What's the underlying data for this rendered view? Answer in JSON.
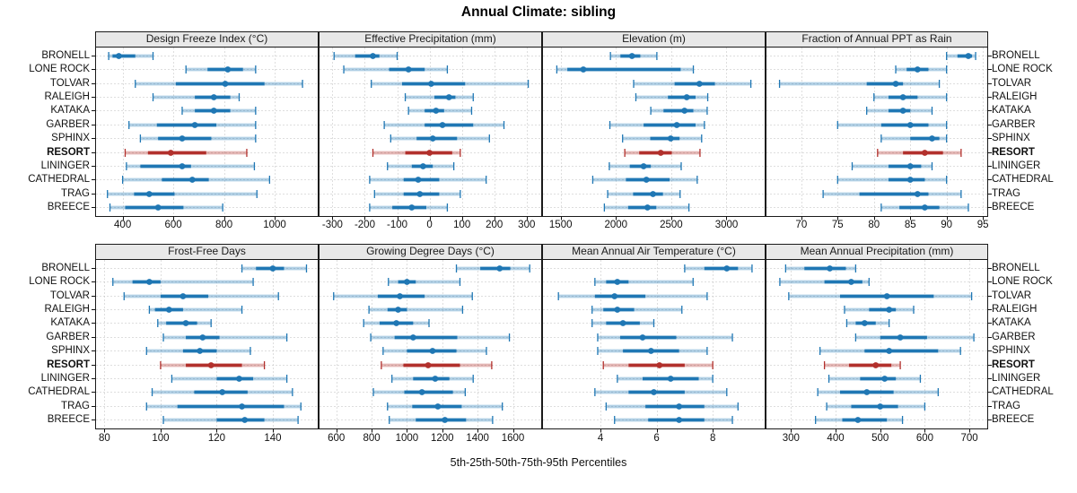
{
  "title": "Annual Climate: sibling",
  "caption": "5th-25th-50th-75th-95th Percentiles",
  "percentile_labels": [
    "5th",
    "25th",
    "50th",
    "75th",
    "95th"
  ],
  "sites": [
    "BRONELL",
    "LONE ROCK",
    "TOLVAR",
    "RALEIGH",
    "KATAKA",
    "GARBER",
    "SPHINX",
    "RESORT",
    "LININGER",
    "CATHEDRAL",
    "TRAG",
    "BREECE"
  ],
  "highlight_site": "RESORT",
  "colors": {
    "series": "#1f77b4",
    "highlight": "#b2302c",
    "strip_bg": "#e8e8e8",
    "grid": "#bdbdbd",
    "border": "#1a1a1a",
    "text": "#000000"
  },
  "chart_data": {
    "type": "percentile-dotplot-grid",
    "layout": "2 rows x 4 cols, shared site axis, thin band = 5th-95th, thick band = 25th-75th, dot = 50th",
    "panels": [
      {
        "title": "Design Freeze Index (°C)",
        "slug": "design-freeze-index",
        "row": 0,
        "col": 0,
        "xticks": [
          400,
          600,
          800,
          1000
        ],
        "xlim": [
          295,
          1170
        ],
        "values": [
          [
            345,
            360,
            385,
            450,
            520
          ],
          [
            650,
            735,
            815,
            875,
            925
          ],
          [
            450,
            610,
            805,
            960,
            1110
          ],
          [
            520,
            685,
            760,
            825,
            860
          ],
          [
            635,
            685,
            760,
            825,
            925
          ],
          [
            425,
            535,
            685,
            770,
            925
          ],
          [
            470,
            540,
            635,
            750,
            925
          ],
          [
            410,
            500,
            590,
            730,
            890
          ],
          [
            415,
            470,
            635,
            670,
            920
          ],
          [
            400,
            555,
            675,
            740,
            980
          ],
          [
            340,
            445,
            505,
            605,
            930
          ],
          [
            350,
            410,
            540,
            640,
            795
          ]
        ]
      },
      {
        "title": "Effective Precipitation (mm)",
        "slug": "effective-precipitation",
        "row": 0,
        "col": 1,
        "xticks": [
          -300,
          -200,
          -100,
          0,
          100,
          200,
          300
        ],
        "xlim": [
          -340,
          345
        ],
        "values": [
          [
            -295,
            -230,
            -175,
            -155,
            -100
          ],
          [
            -265,
            -125,
            -65,
            -15,
            55
          ],
          [
            -180,
            -85,
            5,
            110,
            305
          ],
          [
            -75,
            15,
            60,
            80,
            135
          ],
          [
            -65,
            -15,
            20,
            45,
            130
          ],
          [
            -140,
            -15,
            40,
            135,
            230
          ],
          [
            -120,
            -40,
            10,
            85,
            185
          ],
          [
            -175,
            -75,
            0,
            70,
            95
          ],
          [
            -130,
            -55,
            -20,
            10,
            75
          ],
          [
            -185,
            -80,
            -35,
            30,
            175
          ],
          [
            -170,
            -80,
            -30,
            30,
            95
          ],
          [
            -185,
            -115,
            -55,
            -10,
            55
          ]
        ]
      },
      {
        "title": "Elevation (m)",
        "slug": "elevation",
        "row": 0,
        "col": 2,
        "xticks": [
          1500,
          2000,
          2500,
          3000
        ],
        "xlim": [
          1340,
          3345
        ],
        "values": [
          [
            1950,
            2040,
            2145,
            2220,
            2370
          ],
          [
            1465,
            1560,
            1705,
            2585,
            2700
          ],
          [
            2160,
            2530,
            2755,
            2895,
            3220
          ],
          [
            2180,
            2470,
            2640,
            2720,
            2830
          ],
          [
            2315,
            2430,
            2620,
            2700,
            2825
          ],
          [
            1945,
            2250,
            2550,
            2720,
            2800
          ],
          [
            2060,
            2310,
            2495,
            2575,
            2775
          ],
          [
            2080,
            2210,
            2405,
            2505,
            2760
          ],
          [
            1940,
            2125,
            2250,
            2315,
            2590
          ],
          [
            1790,
            2090,
            2275,
            2485,
            2735
          ],
          [
            1925,
            2155,
            2335,
            2425,
            2580
          ],
          [
            1895,
            2110,
            2285,
            2365,
            2660
          ]
        ]
      },
      {
        "title": "Fraction of Annual PPT as Rain",
        "slug": "fraction-of-annual-ppt-as-rain",
        "row": 0,
        "col": 3,
        "xticks": [
          70,
          75,
          80,
          85,
          90,
          95
        ],
        "xlim": [
          65.2,
          95.6
        ],
        "values": [
          [
            90,
            91.5,
            93,
            93.5,
            94
          ],
          [
            83,
            84.5,
            86,
            87.5,
            90
          ],
          [
            67,
            79,
            83,
            84,
            89
          ],
          [
            80,
            82,
            84,
            86,
            90
          ],
          [
            79,
            82,
            84,
            85,
            88
          ],
          [
            75,
            81,
            85,
            87.5,
            90
          ],
          [
            81,
            85,
            88,
            89,
            90
          ],
          [
            80.5,
            84,
            87,
            89.5,
            92
          ],
          [
            77,
            82,
            85,
            86.5,
            88
          ],
          [
            75,
            82,
            85,
            87,
            90
          ],
          [
            73,
            78,
            86,
            87.5,
            92
          ],
          [
            81,
            83.5,
            87,
            89,
            93
          ]
        ]
      },
      {
        "title": "Frost-Free Days",
        "slug": "frost-free-days",
        "row": 1,
        "col": 0,
        "xticks": [
          80,
          100,
          120,
          140
        ],
        "xlim": [
          77,
          156
        ],
        "values": [
          [
            129,
            134,
            140,
            144,
            152
          ],
          [
            83,
            90,
            96,
            100,
            133
          ],
          [
            87,
            100,
            108,
            117,
            142
          ],
          [
            96,
            98,
            103,
            108,
            129
          ],
          [
            99,
            102,
            109,
            113,
            118
          ],
          [
            101,
            109,
            115,
            121,
            145
          ],
          [
            95,
            108,
            114,
            120,
            132
          ],
          [
            100,
            109,
            118,
            129,
            137
          ],
          [
            104,
            120,
            128,
            133,
            145
          ],
          [
            97,
            112,
            122,
            131,
            147
          ],
          [
            95,
            106,
            129,
            144,
            150
          ],
          [
            101,
            120,
            130,
            137,
            149
          ]
        ]
      },
      {
        "title": "Growing Degree Days (°C)",
        "slug": "growing-degree-days",
        "row": 1,
        "col": 1,
        "xticks": [
          600,
          800,
          1000,
          1200,
          1400,
          1600
        ],
        "xlim": [
          505,
          1760
        ],
        "values": [
          [
            1280,
            1415,
            1525,
            1585,
            1695
          ],
          [
            895,
            950,
            1000,
            1050,
            1300
          ],
          [
            585,
            835,
            960,
            1100,
            1370
          ],
          [
            785,
            890,
            950,
            1000,
            1315
          ],
          [
            755,
            845,
            940,
            1035,
            1125
          ],
          [
            795,
            930,
            1035,
            1285,
            1580
          ],
          [
            865,
            1000,
            1145,
            1280,
            1450
          ],
          [
            855,
            980,
            1120,
            1300,
            1480
          ],
          [
            915,
            1035,
            1160,
            1240,
            1375
          ],
          [
            810,
            985,
            1085,
            1260,
            1330
          ],
          [
            890,
            1030,
            1175,
            1310,
            1540
          ],
          [
            900,
            1050,
            1215,
            1335,
            1485
          ]
        ]
      },
      {
        "title": "Mean Annual Air Temperature (°C)",
        "slug": "mean-annual-air-temperature",
        "row": 1,
        "col": 2,
        "xticks": [
          4,
          6,
          8
        ],
        "xlim": [
          1.95,
          9.85
        ],
        "values": [
          [
            7.0,
            7.7,
            8.5,
            8.9,
            9.4
          ],
          [
            3.8,
            4.2,
            4.6,
            5.0,
            7.3
          ],
          [
            2.5,
            3.8,
            4.5,
            5.6,
            7.8
          ],
          [
            3.7,
            4.1,
            4.6,
            5.2,
            6.9
          ],
          [
            3.7,
            4.2,
            4.8,
            5.4,
            5.9
          ],
          [
            3.9,
            4.7,
            5.5,
            6.7,
            8.7
          ],
          [
            3.9,
            4.8,
            5.8,
            6.8,
            7.8
          ],
          [
            4.1,
            5.0,
            6.1,
            7.0,
            8.0
          ],
          [
            4.6,
            5.5,
            6.5,
            7.5,
            8.0
          ],
          [
            3.8,
            5.0,
            5.9,
            7.0,
            8.5
          ],
          [
            4.2,
            5.6,
            6.8,
            7.7,
            8.9
          ],
          [
            4.5,
            5.7,
            6.8,
            7.7,
            8.7
          ]
        ]
      },
      {
        "title": "Mean Annual Precipitation (mm)",
        "slug": "mean-annual-precipitation",
        "row": 1,
        "col": 3,
        "xticks": [
          300,
          400,
          500,
          600,
          700
        ],
        "xlim": [
          245,
          740
        ],
        "values": [
          [
            288,
            330,
            387,
            423,
            445
          ],
          [
            275,
            375,
            435,
            460,
            475
          ],
          [
            295,
            410,
            515,
            620,
            705
          ],
          [
            420,
            475,
            520,
            535,
            575
          ],
          [
            425,
            445,
            465,
            490,
            520
          ],
          [
            445,
            500,
            545,
            605,
            710
          ],
          [
            365,
            465,
            520,
            630,
            680
          ],
          [
            375,
            430,
            490,
            525,
            545
          ],
          [
            385,
            455,
            510,
            535,
            590
          ],
          [
            360,
            410,
            470,
            530,
            630
          ],
          [
            380,
            435,
            500,
            540,
            600
          ],
          [
            355,
            415,
            450,
            515,
            550
          ]
        ]
      }
    ]
  }
}
